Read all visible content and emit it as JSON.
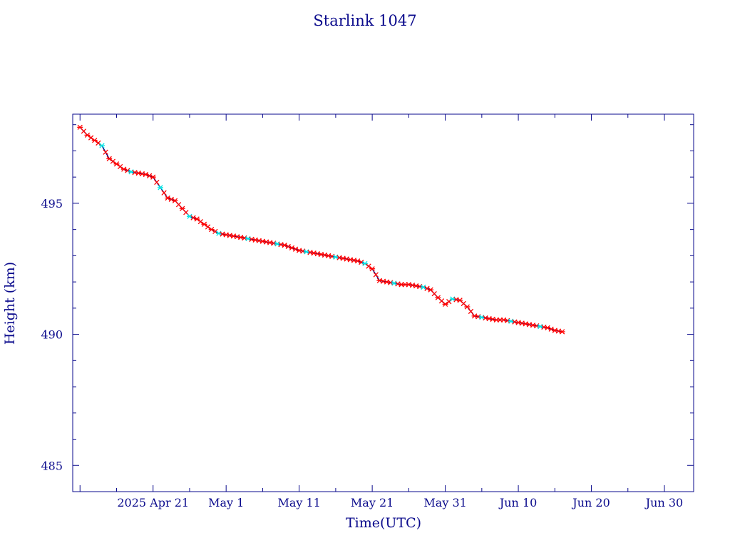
{
  "chart_data": {
    "type": "line",
    "title": "Starlink 1047",
    "xlabel": "Time(UTC)",
    "ylabel": "Height (km)",
    "x_tick_labels": [
      "2025 Apr 21",
      "May  1",
      "May 11",
      "May 21",
      "May 31",
      "Jun 10",
      "Jun 20",
      "Jun 30"
    ],
    "x_tick_dates": [
      "2025-04-21",
      "2025-05-01",
      "2025-05-11",
      "2025-05-21",
      "2025-05-31",
      "2025-06-10",
      "2025-06-20",
      "2025-06-30"
    ],
    "y_ticks": [
      485,
      490,
      495
    ],
    "xlim": [
      "2025-04-10",
      "2025-07-04"
    ],
    "ylim": [
      484,
      498.4
    ],
    "grid": false,
    "colors": {
      "axis": "#0a0a8c",
      "line": "#000080",
      "primary_marker": "#ff0000",
      "secondary_marker": "#00e5e5"
    },
    "series": [
      {
        "x": [
          "2025-04-11",
          "2025-04-12",
          "2025-04-13",
          "2025-04-14",
          "2025-04-15",
          "2025-04-16",
          "2025-04-17",
          "2025-04-18",
          "2025-04-19",
          "2025-04-20",
          "2025-04-21",
          "2025-04-22",
          "2025-04-23",
          "2025-04-24",
          "2025-04-25",
          "2025-04-26",
          "2025-04-27",
          "2025-04-28",
          "2025-04-29",
          "2025-04-30",
          "2025-05-01",
          "2025-05-02",
          "2025-05-03",
          "2025-05-04",
          "2025-05-05",
          "2025-05-06",
          "2025-05-07",
          "2025-05-08",
          "2025-05-09",
          "2025-05-10",
          "2025-05-11",
          "2025-05-12",
          "2025-05-13",
          "2025-05-14",
          "2025-05-15",
          "2025-05-16",
          "2025-05-17",
          "2025-05-18",
          "2025-05-19",
          "2025-05-20",
          "2025-05-21",
          "2025-05-22",
          "2025-05-23",
          "2025-05-24",
          "2025-05-25",
          "2025-05-26",
          "2025-05-27",
          "2025-05-28",
          "2025-05-29",
          "2025-05-30",
          "2025-05-31",
          "2025-06-01",
          "2025-06-02",
          "2025-06-03",
          "2025-06-04",
          "2025-06-05",
          "2025-06-06",
          "2025-06-07",
          "2025-06-08",
          "2025-06-09",
          "2025-06-10",
          "2025-06-11",
          "2025-06-12",
          "2025-06-13",
          "2025-06-14",
          "2025-06-15",
          "2025-06-16"
        ],
        "y": [
          497.9,
          497.6,
          497.4,
          497.2,
          496.7,
          496.5,
          496.3,
          496.2,
          496.15,
          496.1,
          496.0,
          495.6,
          495.2,
          495.1,
          494.8,
          494.5,
          494.4,
          494.2,
          494.0,
          493.85,
          493.8,
          493.75,
          493.7,
          493.65,
          493.6,
          493.55,
          493.5,
          493.45,
          493.4,
          493.3,
          493.2,
          493.15,
          493.1,
          493.05,
          493.0,
          492.95,
          492.9,
          492.85,
          492.8,
          492.7,
          492.5,
          492.05,
          492.0,
          491.95,
          491.9,
          491.9,
          491.85,
          491.8,
          491.7,
          491.4,
          491.15,
          491.35,
          491.3,
          491.05,
          490.7,
          490.65,
          490.6,
          490.55,
          490.55,
          490.5,
          490.45,
          490.4,
          490.35,
          490.3,
          490.25,
          490.15,
          490.1
        ]
      }
    ]
  }
}
